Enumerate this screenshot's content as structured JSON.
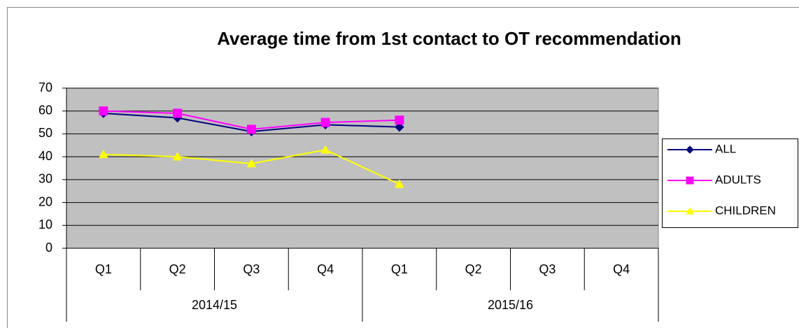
{
  "chart_data": {
    "type": "line",
    "title": "Average time from 1st contact to OT recommendation",
    "groups": [
      {
        "name": "2014/15",
        "categories": [
          "Q1",
          "Q2",
          "Q3",
          "Q4"
        ]
      },
      {
        "name": "2015/16",
        "categories": [
          "Q1",
          "Q2",
          "Q3",
          "Q4"
        ]
      }
    ],
    "series": [
      {
        "name": "ALL",
        "color": "#000080",
        "marker": "diamond",
        "values": [
          59,
          57,
          51,
          54,
          53,
          null,
          null,
          null
        ]
      },
      {
        "name": "ADULTS",
        "color": "#ff00ff",
        "marker": "square",
        "values": [
          60,
          59,
          52,
          55,
          56,
          null,
          null,
          null
        ]
      },
      {
        "name": "CHILDREN",
        "color": "#ffff00",
        "marker": "triangle",
        "values": [
          41,
          40,
          37,
          43,
          28,
          null,
          null,
          null
        ]
      }
    ],
    "ylim": [
      0,
      70
    ],
    "yticks": [
      0,
      10,
      20,
      30,
      40,
      50,
      60,
      70
    ],
    "grid": true,
    "plot_background": "#c0c0c0",
    "legend": "right"
  }
}
